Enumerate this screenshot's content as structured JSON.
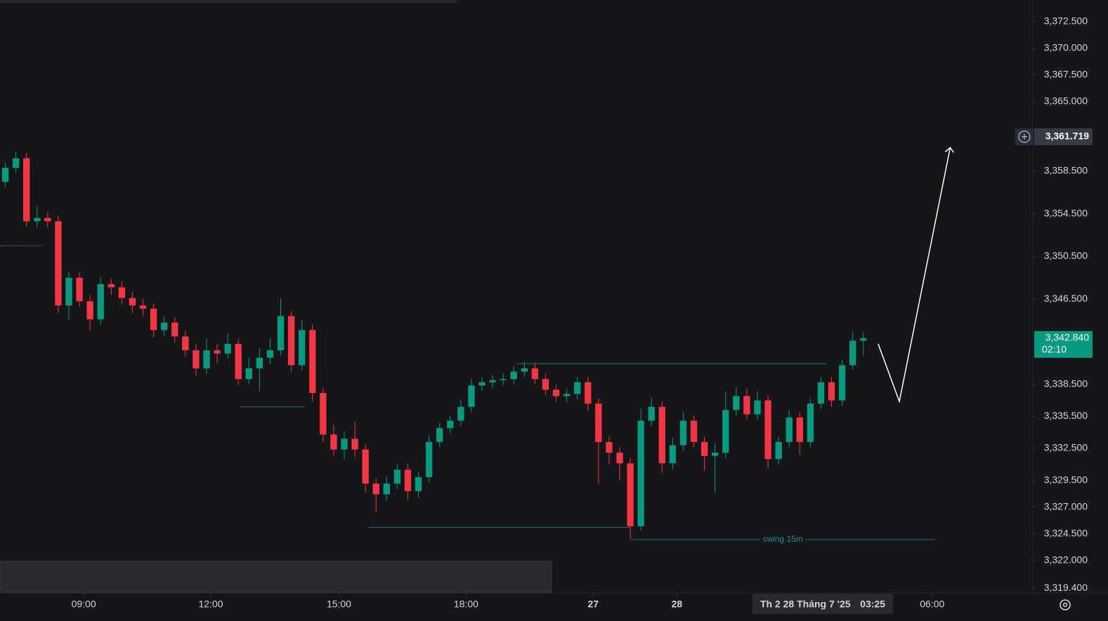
{
  "chart_data": {
    "type": "candlestick",
    "up_color": "#089981",
    "down_color": "#f23645",
    "xlim": [
      -0.5,
      97
    ],
    "ylim": [
      3318.95,
      3374.54
    ],
    "yticks": [
      {
        "value": 3372.5,
        "label": "3,372.500"
      },
      {
        "value": 3370,
        "label": "3,370.000"
      },
      {
        "value": 3367.5,
        "label": "3,367.500"
      },
      {
        "value": 3365,
        "label": "3,365.000"
      },
      {
        "value": 3358.5,
        "label": "3,358.500"
      },
      {
        "value": 3354.5,
        "label": "3,354.500"
      },
      {
        "value": 3350.5,
        "label": "3,350.500"
      },
      {
        "value": 3346.5,
        "label": "3,346.500"
      },
      {
        "value": 3338.5,
        "label": "3,338.500"
      },
      {
        "value": 3335.5,
        "label": "3,335.500"
      },
      {
        "value": 3332.5,
        "label": "3,332.500"
      },
      {
        "value": 3329.5,
        "label": "3,329.500"
      },
      {
        "value": 3327,
        "label": "3,327.000"
      },
      {
        "value": 3324.5,
        "label": "3,324.500"
      },
      {
        "value": 3322,
        "label": "3,322.000"
      },
      {
        "value": 3319.4,
        "label": "3,319.400"
      }
    ],
    "xticks": [
      {
        "value": 7.4,
        "label": "09:00"
      },
      {
        "value": 19.4,
        "label": "12:00"
      },
      {
        "value": 31.5,
        "label": "15:00"
      },
      {
        "value": 43.5,
        "label": "18:00"
      },
      {
        "value": 55.5,
        "label": "27"
      },
      {
        "value": 63.4,
        "label": "28"
      },
      {
        "value": 87.5,
        "label": "06:00"
      }
    ],
    "crosshair_x": {
      "value": 77.1,
      "date": "Th 2 28 Tháng 7 '25",
      "time": "03:25"
    },
    "crosshair_price": {
      "value": 3361.719,
      "label": "3,361.719"
    },
    "current_price": {
      "value": 3342.84,
      "label": "3,342.840",
      "countdown": "02:10"
    },
    "x": [
      0,
      1,
      2,
      3,
      4,
      5,
      6,
      7,
      8,
      9,
      10,
      11,
      12,
      13,
      14,
      15,
      16,
      17,
      18,
      19,
      20,
      21,
      22,
      23,
      24,
      25,
      26,
      27,
      28,
      29,
      30,
      31,
      32,
      33,
      34,
      35,
      36,
      37,
      38,
      39,
      40,
      41,
      42,
      43,
      44,
      45,
      46,
      47,
      48,
      49,
      50,
      51,
      52,
      53,
      54,
      55,
      56,
      57,
      58,
      59,
      60,
      61,
      62,
      63,
      64,
      65,
      66,
      67,
      68,
      69,
      70,
      71,
      72,
      73,
      74,
      75,
      76,
      77,
      78,
      79,
      80,
      81
    ],
    "open": [
      3357.5,
      3358.8,
      3359.7,
      3353.8,
      3354.1,
      3353.8,
      3345.9,
      3348.5,
      3346.3,
      3344.6,
      3347.9,
      3347.6,
      3346.6,
      3345.9,
      3345.6,
      3343.6,
      3344.3,
      3343.0,
      3341.7,
      3340.0,
      3341.7,
      3341.4,
      3342.3,
      3339.0,
      3340.0,
      3341.0,
      3341.7,
      3344.9,
      3340.3,
      3343.6,
      3337.7,
      3333.8,
      3332.4,
      3333.4,
      3332.4,
      3329.2,
      3328.2,
      3329.2,
      3330.5,
      3328.5,
      3329.8,
      3333.1,
      3334.4,
      3335.1,
      3336.4,
      3338.4,
      3338.7,
      3338.9,
      3339.0,
      3339.7,
      3340.0,
      3339.0,
      3338.0,
      3337.4,
      3337.6,
      3338.7,
      3336.7,
      3333.1,
      3332.1,
      3331.1,
      3325.2,
      3335.1,
      3336.4,
      3331.1,
      3332.8,
      3335.1,
      3333.1,
      3331.8,
      3332.1,
      3336.1,
      3337.4,
      3335.7,
      3337.0,
      3331.5,
      3333.1,
      3335.4,
      3333.1,
      3336.7,
      3338.7,
      3337.0,
      3340.3,
      3342.6
    ],
    "high": [
      3359.3,
      3360.3,
      3360.2,
      3355.2,
      3354.7,
      3354.3,
      3349.1,
      3349.0,
      3346.9,
      3348.6,
      3348.4,
      3348.2,
      3347.2,
      3346.5,
      3346.1,
      3344.9,
      3344.8,
      3343.5,
      3342.3,
      3342.8,
      3342.3,
      3343.3,
      3342.8,
      3341.0,
      3341.9,
      3342.8,
      3346.6,
      3345.4,
      3344.5,
      3344.1,
      3338.2,
      3334.7,
      3334.1,
      3335.0,
      3332.9,
      3329.7,
      3329.9,
      3331.0,
      3331.1,
      3330.3,
      3333.7,
      3334.9,
      3335.6,
      3337.1,
      3339.0,
      3339.2,
      3339.4,
      3339.5,
      3340.2,
      3340.6,
      3340.5,
      3339.5,
      3338.5,
      3338.1,
      3339.2,
      3339.2,
      3337.2,
      3333.6,
      3332.6,
      3331.6,
      3336.2,
      3337.3,
      3336.9,
      3333.5,
      3335.9,
      3335.6,
      3333.6,
      3333.0,
      3337.8,
      3338.3,
      3338.1,
      3337.9,
      3337.5,
      3333.6,
      3336.1,
      3335.9,
      3337.2,
      3339.2,
      3339.2,
      3340.8,
      3343.5,
      3343.4
    ],
    "low": [
      3357.0,
      3358.3,
      3353.3,
      3353.2,
      3353.2,
      3345.2,
      3344.6,
      3345.8,
      3343.6,
      3344.1,
      3346.9,
      3346.0,
      3345.2,
      3344.9,
      3342.9,
      3343.0,
      3342.4,
      3341.1,
      3339.3,
      3339.5,
      3340.5,
      3340.9,
      3338.4,
      3338.5,
      3337.9,
      3340.4,
      3341.2,
      3339.7,
      3339.8,
      3336.9,
      3333.1,
      3331.8,
      3331.5,
      3331.7,
      3328.3,
      3326.6,
      3327.6,
      3328.7,
      3327.7,
      3327.9,
      3329.3,
      3332.6,
      3333.9,
      3334.6,
      3335.9,
      3337.9,
      3338.2,
      3338.4,
      3338.5,
      3339.2,
      3338.5,
      3337.5,
      3336.9,
      3336.8,
      3337.1,
      3336.0,
      3329.2,
      3331.0,
      3329.5,
      3324.0,
      3324.8,
      3334.6,
      3330.2,
      3330.5,
      3332.3,
      3332.6,
      3330.4,
      3328.3,
      3331.6,
      3335.6,
      3335.2,
      3335.2,
      3330.6,
      3331.0,
      3332.6,
      3331.9,
      3332.6,
      3336.2,
      3336.4,
      3336.5,
      3339.9,
      3341.2
    ],
    "close": [
      3358.8,
      3359.7,
      3353.8,
      3354.1,
      3353.8,
      3345.9,
      3348.5,
      3346.3,
      3344.6,
      3347.9,
      3347.6,
      3346.6,
      3345.9,
      3345.6,
      3343.6,
      3344.3,
      3343.0,
      3341.7,
      3340.0,
      3341.7,
      3341.4,
      3342.3,
      3339.0,
      3340.0,
      3341.0,
      3341.7,
      3344.9,
      3340.3,
      3343.6,
      3337.7,
      3333.8,
      3332.4,
      3333.4,
      3332.4,
      3329.2,
      3328.2,
      3329.2,
      3330.5,
      3328.5,
      3329.8,
      3333.1,
      3334.4,
      3335.1,
      3336.4,
      3338.4,
      3338.7,
      3338.9,
      3339.0,
      3339.7,
      3340.0,
      3339.0,
      3338.0,
      3337.4,
      3337.6,
      3338.7,
      3336.7,
      3333.1,
      3332.1,
      3331.1,
      3325.2,
      3335.1,
      3336.4,
      3331.1,
      3332.8,
      3335.1,
      3333.1,
      3331.8,
      3332.1,
      3336.1,
      3337.4,
      3335.7,
      3337.0,
      3331.5,
      3333.1,
      3335.4,
      3333.1,
      3336.7,
      3338.7,
      3337.0,
      3340.3,
      3342.6,
      3342.84
    ],
    "levels": [
      {
        "price": 3340.45,
        "from": 48.3,
        "to": 77.5
      },
      {
        "price": 3325.1,
        "from": 34.3,
        "to": 59.0
      },
      {
        "price": 3323.95,
        "from": 59.0,
        "to": 87.8,
        "label": "swing 15m"
      },
      {
        "price": 3336.4,
        "from": 22.2,
        "to": 28.3
      },
      {
        "price": 3351.5,
        "from": -0.5,
        "to": 3.5
      }
    ],
    "projection": {
      "x": [
        82.4,
        84.4,
        89.2
      ],
      "y": [
        3342.3,
        3336.9,
        3360.7
      ]
    }
  }
}
